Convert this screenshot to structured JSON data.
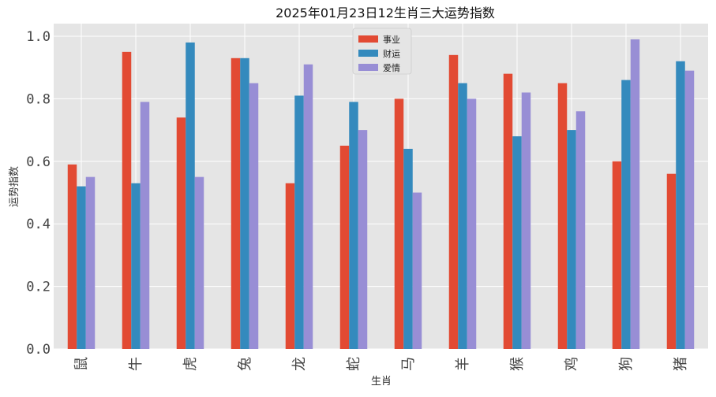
{
  "chart_data": {
    "type": "bar",
    "title": "2025年01月23日12生肖三大运势指数",
    "xlabel": "生肖",
    "ylabel": "运势指数",
    "categories": [
      "鼠",
      "牛",
      "虎",
      "兔",
      "龙",
      "蛇",
      "马",
      "羊",
      "猴",
      "鸡",
      "狗",
      "猪"
    ],
    "series": [
      {
        "name": "事业",
        "color": "#E24A33",
        "values": [
          0.59,
          0.95,
          0.74,
          0.93,
          0.53,
          0.65,
          0.8,
          0.94,
          0.88,
          0.85,
          0.6,
          0.56
        ]
      },
      {
        "name": "财运",
        "color": "#348ABD",
        "values": [
          0.52,
          0.53,
          0.98,
          0.93,
          0.81,
          0.79,
          0.64,
          0.85,
          0.68,
          0.7,
          0.86,
          0.92
        ]
      },
      {
        "name": "爱情",
        "color": "#988ED5",
        "values": [
          0.55,
          0.79,
          0.55,
          0.85,
          0.91,
          0.7,
          0.5,
          0.8,
          0.82,
          0.76,
          0.99,
          0.89
        ]
      }
    ],
    "ylim": [
      0,
      1.0
    ],
    "yticks": [
      "0.0",
      "0.2",
      "0.4",
      "0.6",
      "0.8",
      "1.0"
    ],
    "grid": true,
    "legend_position": "top-center",
    "background": "#E5E5E5"
  }
}
